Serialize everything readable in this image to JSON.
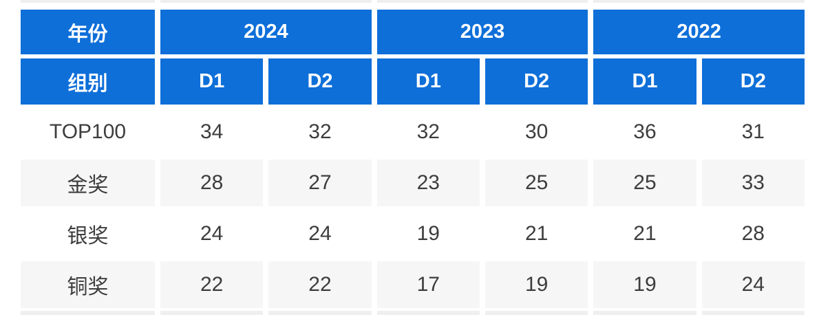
{
  "chart_data": {
    "type": "table",
    "corner": {
      "year_label": "年份",
      "group_label": "组别"
    },
    "year_groups": [
      {
        "year": "2024",
        "subcolumns": [
          "D1",
          "D2"
        ]
      },
      {
        "year": "2023",
        "subcolumns": [
          "D1",
          "D2"
        ]
      },
      {
        "year": "2022",
        "subcolumns": [
          "D1",
          "D2"
        ]
      }
    ],
    "rows": [
      {
        "label": "TOP100",
        "values": [
          34,
          32,
          32,
          30,
          36,
          31
        ]
      },
      {
        "label": "金奖",
        "values": [
          28,
          27,
          23,
          25,
          25,
          33
        ]
      },
      {
        "label": "银奖",
        "values": [
          24,
          24,
          19,
          21,
          21,
          28
        ]
      },
      {
        "label": "铜奖",
        "values": [
          22,
          22,
          17,
          19,
          19,
          24
        ]
      }
    ],
    "layout": {
      "zebra_rows": [
        "金奖",
        "铜奖"
      ],
      "header_span": 2
    }
  },
  "colors": {
    "header_bg": "#0e6fd9",
    "header_text": "#ffffff",
    "body_text": "#3d3d3d",
    "zebra_bg": "#f6f6f6",
    "cutoff_bg": "#efefef"
  }
}
